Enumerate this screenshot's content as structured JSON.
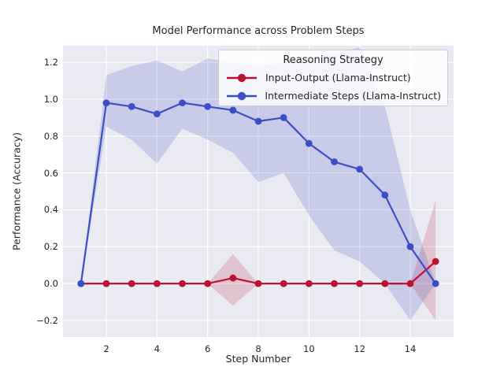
{
  "figure": {
    "title": "Model Performance across Problem Steps",
    "xlabel": "Step Number",
    "ylabel": "Performance (Accuracy)"
  },
  "legend": {
    "title": "Reasoning Strategy",
    "entries": [
      {
        "label": "Input-Output (Llama-Instruct)"
      },
      {
        "label": "Intermediate Steps (Llama-Instruct)"
      }
    ]
  },
  "chart_data": {
    "type": "line",
    "title": "Model Performance across Problem Steps",
    "xlabel": "Step Number",
    "ylabel": "Performance (Accuracy)",
    "x": [
      1,
      2,
      3,
      4,
      5,
      6,
      7,
      8,
      9,
      10,
      11,
      12,
      13,
      14,
      15
    ],
    "series": [
      {
        "name": "Input-Output (Llama-Instruct)",
        "key": "input-output",
        "color": "#bc1232",
        "band_alpha": 0.18,
        "values": [
          0,
          0,
          0,
          0,
          0,
          0,
          0.03,
          0,
          0,
          0,
          0,
          0,
          0,
          0,
          0.12
        ],
        "band_upper": [
          0,
          0,
          0,
          0,
          0,
          0,
          0.16,
          0,
          0,
          0,
          0,
          0,
          0,
          0,
          0.45
        ],
        "band_lower": [
          0,
          0,
          0,
          0,
          0,
          0,
          -0.12,
          0,
          0,
          0,
          0,
          0,
          0,
          0,
          -0.2
        ]
      },
      {
        "name": "Intermediate Steps (Llama-Instruct)",
        "key": "intermediate-steps",
        "color": "#3b4ec4",
        "band_alpha": 0.2,
        "values": [
          0,
          0.98,
          0.96,
          0.92,
          0.98,
          0.96,
          0.94,
          0.88,
          0.9,
          0.76,
          0.66,
          0.62,
          0.48,
          0.2,
          0
        ],
        "band_upper": [
          0,
          1.13,
          1.18,
          1.21,
          1.15,
          1.22,
          1.2,
          1.18,
          1.2,
          1.22,
          1.25,
          1.28,
          0.96,
          0.4,
          0
        ],
        "band_lower": [
          0,
          0.85,
          0.78,
          0.65,
          0.84,
          0.78,
          0.71,
          0.55,
          0.6,
          0.37,
          0.18,
          0.12,
          0,
          -0.2,
          0
        ]
      }
    ],
    "xticks": [
      2,
      4,
      6,
      8,
      10,
      12,
      14
    ],
    "xtick_labels": [
      "2",
      "4",
      "6",
      "8",
      "10",
      "12",
      "14"
    ],
    "yticks": [
      -0.2,
      0.0,
      0.2,
      0.4,
      0.6,
      0.8,
      1.0,
      1.2
    ],
    "ytick_labels": [
      "−0.2",
      "0.0",
      "0.2",
      "0.4",
      "0.6",
      "0.8",
      "1.0",
      "1.2"
    ],
    "xlim": [
      0.29,
      15.71
    ],
    "ylim": [
      -0.29,
      1.29
    ],
    "grid": true,
    "plot_background": "#eaeaf2",
    "grid_color": "#ffffff",
    "legend_title": "Reasoning Strategy",
    "legend_position": "upper right"
  }
}
